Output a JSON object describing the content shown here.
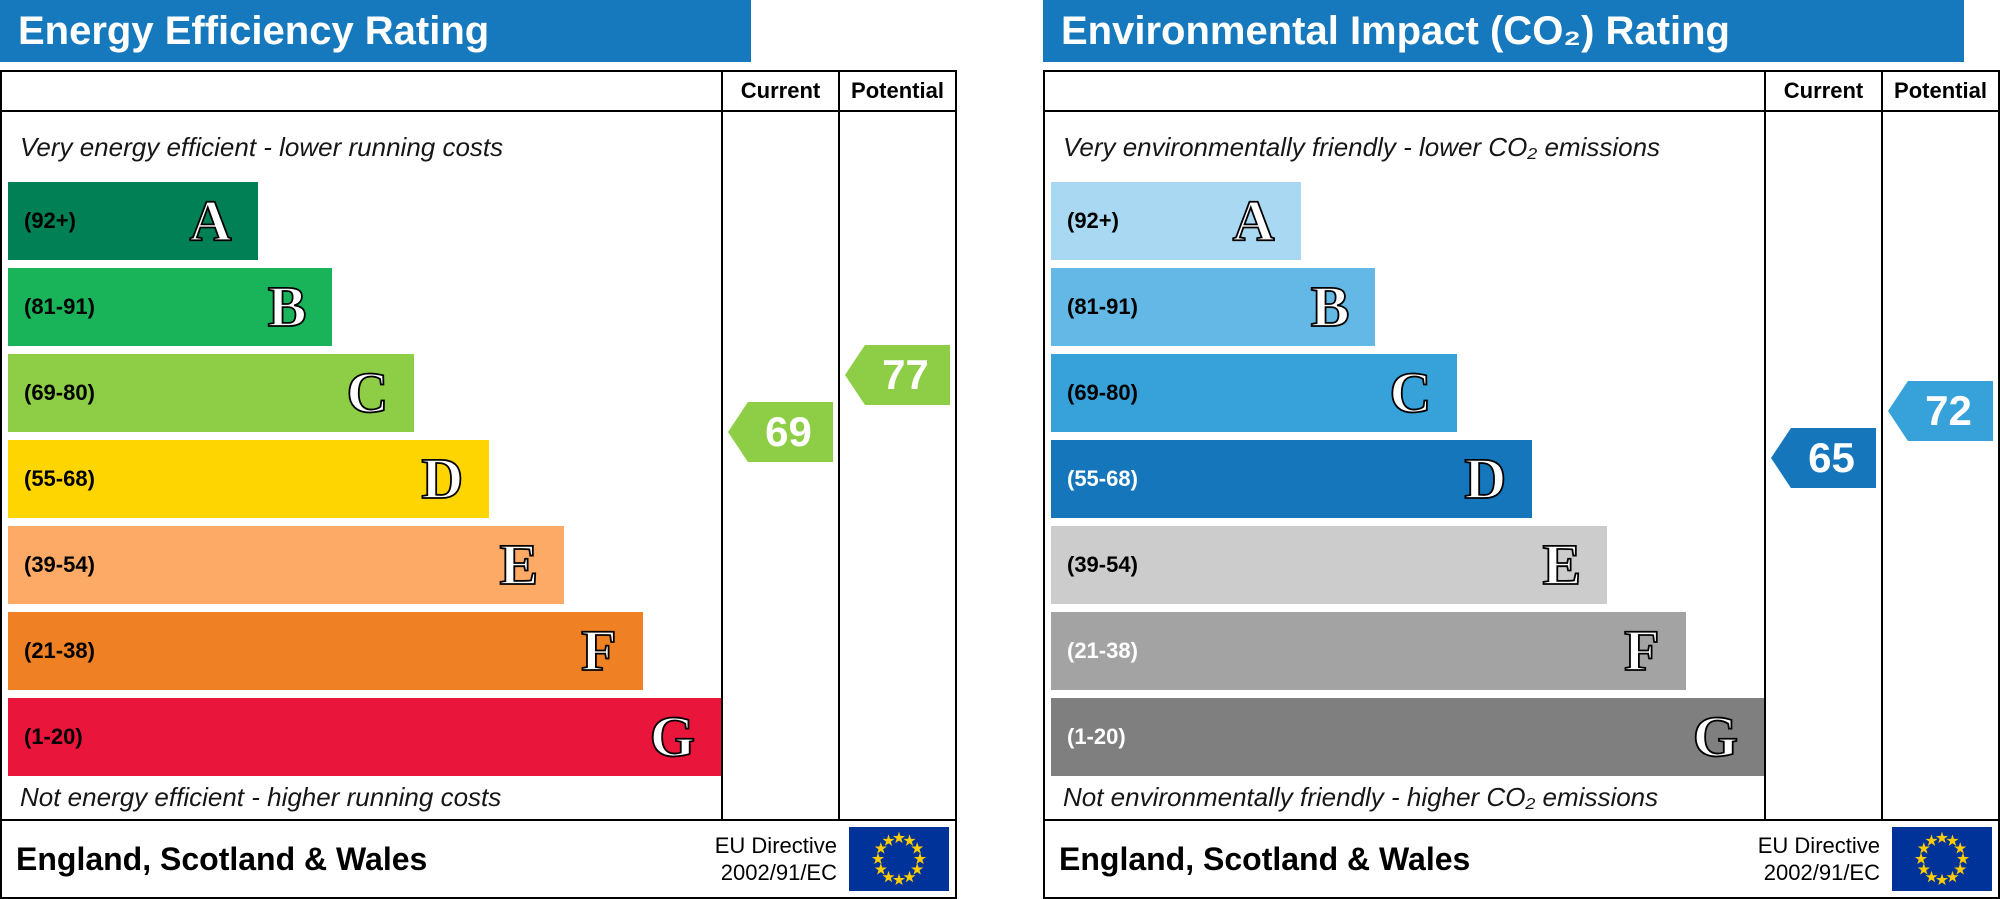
{
  "colors": {
    "header_bg": "#1779bd",
    "panel_bg": "#ffffff",
    "border": "#000000",
    "eu_flag_bg": "#003399",
    "eu_flag_stars": "#ffcc00"
  },
  "chart_data": [
    {
      "type": "bar",
      "subtype": "epc-rating-scale",
      "title": "Energy Efficiency Rating",
      "columns": [
        "Current",
        "Potential"
      ],
      "top_caption": "Very energy efficient - lower running costs",
      "bottom_caption": "Not energy efficient - higher running costs",
      "bands": [
        {
          "letter": "A",
          "range_label": "(92+)",
          "low": 92,
          "high": 100,
          "color": "#008054",
          "text_color": "#000000",
          "width_pct": 35
        },
        {
          "letter": "B",
          "range_label": "(81-91)",
          "low": 81,
          "high": 91,
          "color": "#19b459",
          "text_color": "#000000",
          "width_pct": 45.5
        },
        {
          "letter": "C",
          "range_label": "(69-80)",
          "low": 69,
          "high": 80,
          "color": "#8dce46",
          "text_color": "#000000",
          "width_pct": 57
        },
        {
          "letter": "D",
          "range_label": "(55-68)",
          "low": 55,
          "high": 68,
          "color": "#ffd500",
          "text_color": "#000000",
          "width_pct": 67.5
        },
        {
          "letter": "E",
          "range_label": "(39-54)",
          "low": 39,
          "high": 54,
          "color": "#fcaa65",
          "text_color": "#000000",
          "width_pct": 78
        },
        {
          "letter": "F",
          "range_label": "(21-38)",
          "low": 21,
          "high": 38,
          "color": "#ef8023",
          "text_color": "#000000",
          "width_pct": 89
        },
        {
          "letter": "G",
          "range_label": "(1-20)",
          "low": 1,
          "high": 20,
          "color": "#e9153b",
          "text_color": "#000000",
          "width_pct": 100
        }
      ],
      "current": 69,
      "potential": 77,
      "footer_region": "England, Scotland & Wales",
      "footer_directive": [
        "EU Directive",
        "2002/91/EC"
      ]
    },
    {
      "type": "bar",
      "subtype": "epc-rating-scale",
      "title": "Environmental Impact (CO₂) Rating",
      "columns": [
        "Current",
        "Potential"
      ],
      "top_caption": "Very environmentally friendly - lower CO₂ emissions",
      "bottom_caption": "Not environmentally friendly - higher CO₂ emissions",
      "bands": [
        {
          "letter": "A",
          "range_label": "(92+)",
          "low": 92,
          "high": 100,
          "color": "#a9d8f3",
          "text_color": "#000000",
          "width_pct": 35
        },
        {
          "letter": "B",
          "range_label": "(81-91)",
          "low": 81,
          "high": 91,
          "color": "#63b8e5",
          "text_color": "#000000",
          "width_pct": 45.5
        },
        {
          "letter": "C",
          "range_label": "(69-80)",
          "low": 69,
          "high": 80,
          "color": "#37a2da",
          "text_color": "#000000",
          "width_pct": 57
        },
        {
          "letter": "D",
          "range_label": "(55-68)",
          "low": 55,
          "high": 68,
          "color": "#1576bc",
          "text_color": "#ffffff",
          "width_pct": 67.5
        },
        {
          "letter": "E",
          "range_label": "(39-54)",
          "low": 39,
          "high": 54,
          "color": "#cccccc",
          "text_color": "#000000",
          "width_pct": 78
        },
        {
          "letter": "F",
          "range_label": "(21-38)",
          "low": 21,
          "high": 38,
          "color": "#a3a3a3",
          "text_color": "#ffffff",
          "width_pct": 89
        },
        {
          "letter": "G",
          "range_label": "(1-20)",
          "low": 1,
          "high": 20,
          "color": "#7f7f7f",
          "text_color": "#ffffff",
          "width_pct": 100
        }
      ],
      "current": 65,
      "potential": 72,
      "footer_region": "England, Scotland & Wales",
      "footer_directive": [
        "EU Directive",
        "2002/91/EC"
      ]
    }
  ]
}
